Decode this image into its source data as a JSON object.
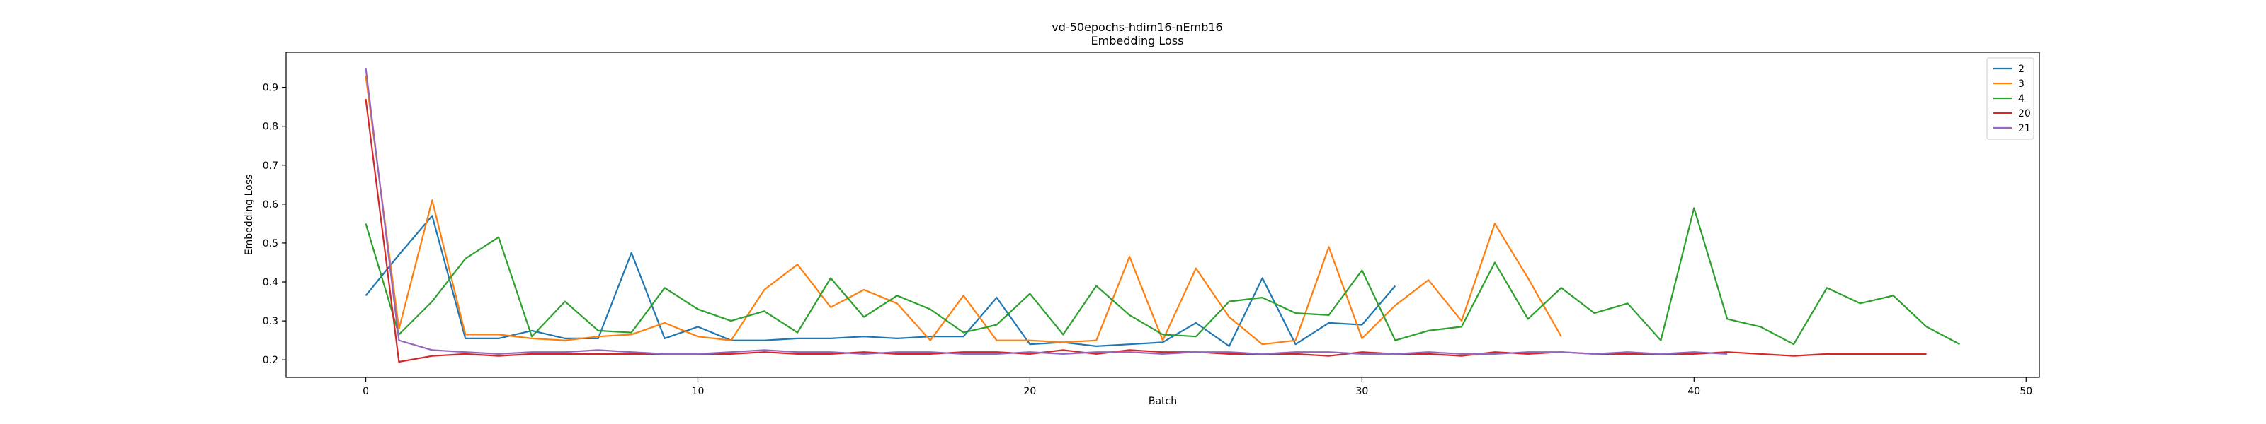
{
  "chart_data": {
    "type": "line",
    "title_lines": [
      "vd-50epochs-hdim16-nEmb16",
      "Embedding Loss"
    ],
    "xlabel": "Batch",
    "ylabel": "Embedding Loss",
    "xlim": [
      -2.4,
      50.4
    ],
    "ylim": [
      0.155,
      0.99
    ],
    "xticks": [
      0,
      10,
      20,
      30,
      40,
      50
    ],
    "yticks": [
      0.2,
      0.3,
      0.4,
      0.5,
      0.6,
      0.7,
      0.8,
      0.9
    ],
    "grid": false,
    "legend_position": "top-right",
    "series": [
      {
        "name": "2",
        "color": "#1f77b4",
        "x": [
          0,
          1,
          2,
          3,
          4,
          5,
          6,
          7,
          8,
          9,
          10,
          11,
          12,
          13,
          14,
          15,
          16,
          17,
          18,
          19,
          20,
          21,
          22,
          23,
          24,
          25,
          26,
          27,
          28,
          29,
          30,
          31
        ],
        "y": [
          0.365,
          0.47,
          0.57,
          0.255,
          0.255,
          0.275,
          0.255,
          0.255,
          0.475,
          0.255,
          0.285,
          0.25,
          0.25,
          0.255,
          0.255,
          0.26,
          0.255,
          0.26,
          0.26,
          0.36,
          0.24,
          0.245,
          0.235,
          0.24,
          0.245,
          0.295,
          0.235,
          0.41,
          0.24,
          0.295,
          0.29,
          0.39
        ]
      },
      {
        "name": "3",
        "color": "#ff7f0e",
        "x": [
          0,
          1,
          2,
          3,
          4,
          5,
          6,
          7,
          8,
          9,
          10,
          11,
          12,
          13,
          14,
          15,
          16,
          17,
          18,
          19,
          20,
          21,
          22,
          23,
          24,
          25,
          26,
          27,
          28,
          29,
          30,
          31,
          32,
          33,
          34,
          35,
          36
        ],
        "y": [
          0.93,
          0.28,
          0.61,
          0.265,
          0.265,
          0.255,
          0.25,
          0.26,
          0.265,
          0.295,
          0.26,
          0.25,
          0.38,
          0.445,
          0.335,
          0.38,
          0.345,
          0.25,
          0.365,
          0.25,
          0.25,
          0.245,
          0.25,
          0.465,
          0.25,
          0.435,
          0.31,
          0.24,
          0.25,
          0.49,
          0.255,
          0.34,
          0.405,
          0.3,
          0.55,
          0.41,
          0.26
        ]
      },
      {
        "name": "4",
        "color": "#2ca02c",
        "x": [
          0,
          1,
          2,
          3,
          4,
          5,
          6,
          7,
          8,
          9,
          10,
          11,
          12,
          13,
          14,
          15,
          16,
          17,
          18,
          19,
          20,
          21,
          22,
          23,
          24,
          25,
          26,
          27,
          28,
          29,
          30,
          31,
          32,
          33,
          34,
          35,
          36,
          37,
          38,
          39,
          40,
          41,
          42,
          43,
          44,
          45,
          46,
          47,
          48
        ],
        "y": [
          0.55,
          0.265,
          0.35,
          0.46,
          0.515,
          0.26,
          0.35,
          0.275,
          0.27,
          0.385,
          0.33,
          0.3,
          0.325,
          0.27,
          0.41,
          0.31,
          0.365,
          0.33,
          0.27,
          0.29,
          0.37,
          0.265,
          0.39,
          0.315,
          0.265,
          0.26,
          0.35,
          0.36,
          0.32,
          0.315,
          0.43,
          0.25,
          0.275,
          0.285,
          0.45,
          0.305,
          0.385,
          0.32,
          0.345,
          0.25,
          0.59,
          0.305,
          0.285,
          0.24,
          0.385,
          0.345,
          0.365,
          0.285,
          0.24
        ]
      },
      {
        "name": "20",
        "color": "#d62728",
        "x": [
          0,
          1,
          2,
          3,
          4,
          5,
          6,
          7,
          8,
          9,
          10,
          11,
          12,
          13,
          14,
          15,
          16,
          17,
          18,
          19,
          20,
          21,
          22,
          23,
          24,
          25,
          26,
          27,
          28,
          29,
          30,
          31,
          32,
          33,
          34,
          35,
          36,
          37,
          38,
          39,
          40,
          41,
          42,
          43,
          44,
          45,
          46,
          47
        ],
        "y": [
          0.87,
          0.195,
          0.21,
          0.215,
          0.21,
          0.215,
          0.215,
          0.215,
          0.215,
          0.215,
          0.215,
          0.215,
          0.22,
          0.215,
          0.215,
          0.22,
          0.215,
          0.215,
          0.22,
          0.22,
          0.215,
          0.225,
          0.215,
          0.225,
          0.22,
          0.22,
          0.215,
          0.215,
          0.215,
          0.21,
          0.22,
          0.215,
          0.215,
          0.21,
          0.22,
          0.215,
          0.22,
          0.215,
          0.215,
          0.215,
          0.215,
          0.22,
          0.215,
          0.21,
          0.215,
          0.215,
          0.215,
          0.215
        ]
      },
      {
        "name": "21",
        "color": "#9467bd",
        "x": [
          0,
          1,
          2,
          3,
          4,
          5,
          6,
          7,
          8,
          9,
          10,
          11,
          12,
          13,
          14,
          15,
          16,
          17,
          18,
          19,
          20,
          21,
          22,
          23,
          24,
          25,
          26,
          27,
          28,
          29,
          30,
          31,
          32,
          33,
          34,
          35,
          36,
          37,
          38,
          39,
          40,
          41
        ],
        "y": [
          0.95,
          0.25,
          0.225,
          0.22,
          0.215,
          0.22,
          0.22,
          0.225,
          0.22,
          0.215,
          0.215,
          0.22,
          0.225,
          0.22,
          0.22,
          0.215,
          0.22,
          0.22,
          0.215,
          0.215,
          0.22,
          0.215,
          0.22,
          0.22,
          0.215,
          0.22,
          0.22,
          0.215,
          0.22,
          0.22,
          0.215,
          0.215,
          0.22,
          0.215,
          0.215,
          0.22,
          0.22,
          0.215,
          0.22,
          0.215,
          0.22,
          0.215
        ]
      }
    ]
  }
}
